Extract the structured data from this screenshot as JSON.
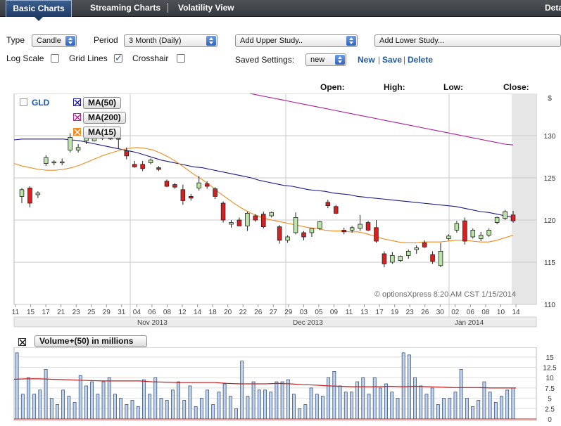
{
  "tabs": {
    "basic": "Basic Charts",
    "streaming": "Streaming Charts",
    "volatility": "Volatility View",
    "details": "Deta"
  },
  "controls": {
    "type_label": "Type",
    "type_value": "Candle",
    "period_label": "Period",
    "period_value": "3 Month (Daily)",
    "upper_study": "Add Upper Study..",
    "lower_study": "Add Lower Study...",
    "log_scale_label": "Log Scale",
    "log_scale_checked": false,
    "grid_lines_label": "Grid Lines",
    "grid_lines_checked": true,
    "crosshair_label": "Crosshair",
    "crosshair_checked": false,
    "saved_settings_label": "Saved Settings:",
    "saved_settings_value": "new",
    "new_link": "New",
    "save_link": "Save",
    "delete_link": "Delete",
    "pipe": "|"
  },
  "quote_header": {
    "open": "Open:",
    "high": "High:",
    "low": "Low:",
    "close": "Close:"
  },
  "legend": {
    "symbol": "GLD",
    "ma50": "MA(50)",
    "ma200": "MA(200)",
    "ma15": "MA(15)",
    "volume": "Volume+(50) in millions"
  },
  "watermark": "© optionsXpress 8:20 AM CST 1/15/2014",
  "colors": {
    "ma50": "#1a1a8c",
    "ma200": "#b0219a",
    "ma15": "#f08a1c",
    "up_candle": "#b9e6a5",
    "down_candle": "#d92020",
    "volume_bar": "#bdd3ee",
    "volume_ma": "#c51b1b"
  },
  "chart_data": [
    {
      "type": "candlestick",
      "unit_label": "$",
      "ylim": [
        110,
        135
      ],
      "yticks": [
        110,
        115,
        120,
        125,
        130
      ],
      "grid": true,
      "x_day_labels": [
        "11",
        "15",
        "17",
        "21",
        "23",
        "25",
        "29",
        "31",
        "04",
        "06",
        "08",
        "12",
        "14",
        "18",
        "20",
        "22",
        "26",
        "27",
        "29",
        "03",
        "05",
        "09",
        "11",
        "13",
        "17",
        "19",
        "23",
        "26",
        "30",
        "02",
        "06",
        "08",
        "10",
        "14"
      ],
      "month_labels": [
        "Nov 2013",
        "Dec 2013",
        "Jan 2014"
      ],
      "candles": [
        {
          "o": 122.8,
          "h": 123.8,
          "l": 122.0,
          "c": 123.6
        },
        {
          "o": 123.8,
          "h": 124.0,
          "l": 121.5,
          "c": 122.0
        },
        {
          "o": 123.0,
          "h": 123.4,
          "l": 122.6,
          "c": 123.2
        },
        {
          "o": 126.7,
          "h": 127.7,
          "l": 126.4,
          "c": 127.4
        },
        {
          "o": 126.8,
          "h": 127.1,
          "l": 126.5,
          "c": 126.9
        },
        {
          "o": 126.9,
          "h": 127.3,
          "l": 126.5,
          "c": 126.9
        },
        {
          "o": 128.3,
          "h": 130.3,
          "l": 128.0,
          "c": 129.8
        },
        {
          "o": 128.3,
          "h": 129.0,
          "l": 128.0,
          "c": 128.6
        },
        {
          "o": 129.4,
          "h": 130.5,
          "l": 129.0,
          "c": 129.8
        },
        {
          "o": 129.4,
          "h": 130.2,
          "l": 129.3,
          "c": 129.9
        },
        {
          "o": 129.8,
          "h": 130.0,
          "l": 129.5,
          "c": 129.7
        },
        {
          "o": 129.9,
          "h": 130.4,
          "l": 129.5,
          "c": 129.6
        },
        {
          "o": 129.7,
          "h": 130.0,
          "l": 128.5,
          "c": 129.6
        },
        {
          "o": 128.2,
          "h": 128.6,
          "l": 127.2,
          "c": 127.6
        },
        {
          "o": 126.6,
          "h": 127.0,
          "l": 126.2,
          "c": 126.3
        },
        {
          "o": 126.6,
          "h": 127.0,
          "l": 125.8,
          "c": 126.1
        },
        {
          "o": 126.8,
          "h": 127.3,
          "l": 126.6,
          "c": 127.1
        },
        {
          "o": 126.2,
          "h": 126.4,
          "l": 125.8,
          "c": 126.0
        },
        {
          "o": 124.6,
          "h": 124.8,
          "l": 123.9,
          "c": 124.0
        },
        {
          "o": 124.2,
          "h": 124.4,
          "l": 123.7,
          "c": 123.9
        },
        {
          "o": 123.6,
          "h": 124.2,
          "l": 121.8,
          "c": 122.3
        },
        {
          "o": 122.8,
          "h": 123.1,
          "l": 122.3,
          "c": 122.6
        },
        {
          "o": 123.8,
          "h": 125.2,
          "l": 123.5,
          "c": 124.4
        },
        {
          "o": 124.3,
          "h": 124.6,
          "l": 123.7,
          "c": 124.0
        },
        {
          "o": 123.7,
          "h": 123.9,
          "l": 122.5,
          "c": 122.8
        },
        {
          "o": 122.0,
          "h": 122.2,
          "l": 119.7,
          "c": 120.0
        },
        {
          "o": 119.5,
          "h": 120.0,
          "l": 119.1,
          "c": 119.7
        },
        {
          "o": 120.0,
          "h": 120.3,
          "l": 119.3,
          "c": 119.3
        },
        {
          "o": 119.3,
          "h": 121.0,
          "l": 118.7,
          "c": 120.8
        },
        {
          "o": 120.5,
          "h": 120.7,
          "l": 119.8,
          "c": 120.0
        },
        {
          "o": 120.7,
          "h": 121.0,
          "l": 119.0,
          "c": 119.2
        },
        {
          "o": 120.5,
          "h": 121.0,
          "l": 120.3,
          "c": 120.9
        },
        {
          "o": 119.2,
          "h": 119.4,
          "l": 117.2,
          "c": 117.6
        },
        {
          "o": 117.6,
          "h": 118.2,
          "l": 117.3,
          "c": 118.0
        },
        {
          "o": 118.5,
          "h": 120.9,
          "l": 118.3,
          "c": 120.3
        },
        {
          "o": 118.5,
          "h": 118.7,
          "l": 117.6,
          "c": 118.0
        },
        {
          "o": 118.5,
          "h": 119.0,
          "l": 118.0,
          "c": 119.0
        },
        {
          "o": 119.0,
          "h": 119.9,
          "l": 118.8,
          "c": 119.8
        },
        {
          "o": 122.1,
          "h": 122.4,
          "l": 121.4,
          "c": 121.7
        },
        {
          "o": 121.6,
          "h": 121.8,
          "l": 120.7,
          "c": 120.8
        },
        {
          "o": 118.8,
          "h": 119.1,
          "l": 118.3,
          "c": 118.6
        },
        {
          "o": 118.8,
          "h": 119.3,
          "l": 118.5,
          "c": 119.1
        },
        {
          "o": 119.0,
          "h": 120.6,
          "l": 118.7,
          "c": 119.5
        },
        {
          "o": 119.7,
          "h": 119.9,
          "l": 118.7,
          "c": 118.8
        },
        {
          "o": 119.1,
          "h": 120.0,
          "l": 117.3,
          "c": 117.5
        },
        {
          "o": 116.0,
          "h": 116.3,
          "l": 114.4,
          "c": 114.8
        },
        {
          "o": 115.0,
          "h": 116.2,
          "l": 114.8,
          "c": 115.8
        },
        {
          "o": 115.2,
          "h": 115.8,
          "l": 115.0,
          "c": 115.7
        },
        {
          "o": 115.8,
          "h": 116.5,
          "l": 115.4,
          "c": 116.3
        },
        {
          "o": 116.5,
          "h": 117.0,
          "l": 116.0,
          "c": 116.7
        },
        {
          "o": 117.3,
          "h": 117.6,
          "l": 116.7,
          "c": 116.8
        },
        {
          "o": 115.9,
          "h": 116.3,
          "l": 114.8,
          "c": 115.1
        },
        {
          "o": 114.6,
          "h": 117.3,
          "l": 114.4,
          "c": 116.3
        },
        {
          "o": 117.8,
          "h": 118.3,
          "l": 117.6,
          "c": 118.1
        },
        {
          "o": 118.8,
          "h": 119.9,
          "l": 118.5,
          "c": 119.6
        },
        {
          "o": 119.9,
          "h": 120.3,
          "l": 117.1,
          "c": 117.5
        },
        {
          "o": 118.0,
          "h": 119.0,
          "l": 117.8,
          "c": 118.8
        },
        {
          "o": 117.8,
          "h": 118.6,
          "l": 117.5,
          "c": 118.2
        },
        {
          "o": 118.2,
          "h": 119.0,
          "l": 118.0,
          "c": 118.8
        },
        {
          "o": 119.7,
          "h": 120.4,
          "l": 119.5,
          "c": 120.3
        },
        {
          "o": 120.2,
          "h": 121.2,
          "l": 120.0,
          "c": 121.0
        },
        {
          "o": 120.6,
          "h": 121.1,
          "l": 119.7,
          "c": 119.9
        }
      ],
      "ma50": [
        129.5,
        129.6,
        129.6,
        129.6,
        129.6,
        129.6,
        129.6,
        129.5,
        129.4,
        129.2,
        129.0,
        128.8,
        128.6,
        128.4,
        128.2,
        128.0,
        127.7,
        127.4,
        127.1,
        126.9,
        126.7,
        126.5,
        126.3,
        126.2,
        126.0,
        125.8,
        125.6,
        125.4,
        125.2,
        125.0,
        124.7,
        124.5,
        124.3,
        124.1,
        124.0,
        123.8,
        123.6,
        123.5,
        123.4,
        123.2,
        123.1,
        123.0,
        122.8,
        122.7,
        122.6,
        122.5,
        122.4,
        122.3,
        122.2,
        122.1,
        122.0,
        121.9,
        121.8,
        121.7,
        121.6,
        121.4,
        121.2,
        121.0,
        120.9,
        120.7,
        120.5,
        120.3
      ],
      "ma200": [
        135.0,
        134.8,
        134.6,
        134.4,
        134.2,
        134.0,
        133.8,
        133.6,
        133.4,
        133.2,
        133.0,
        132.8,
        132.6,
        132.4,
        132.2,
        132.0,
        131.8,
        131.6,
        131.4,
        131.2,
        131.0,
        130.8,
        130.6,
        130.4,
        130.2,
        130.0,
        129.8,
        129.6,
        129.4,
        129.2,
        129.0,
        128.9
      ],
      "ma15": [
        126.7,
        126.4,
        126.2,
        126.0,
        125.9,
        125.9,
        126.0,
        126.2,
        126.5,
        126.9,
        127.3,
        127.7,
        128.0,
        128.3,
        128.5,
        128.6,
        128.5,
        128.3,
        127.9,
        127.4,
        126.8,
        126.1,
        125.4,
        124.8,
        124.1,
        123.3,
        122.6,
        121.9,
        121.3,
        120.8,
        120.4,
        120.1,
        119.9,
        119.7,
        119.5,
        119.3,
        119.1,
        119.0,
        118.8,
        118.7,
        118.7,
        118.6,
        118.6,
        118.4,
        118.1,
        117.8,
        117.6,
        117.4,
        117.3,
        117.3,
        117.4,
        117.4,
        117.4,
        117.5,
        117.6,
        117.6,
        117.5,
        117.4,
        117.4,
        117.6,
        117.9,
        118.2
      ]
    },
    {
      "type": "bar",
      "title": "Volume+(50) in millions",
      "ylim": [
        0,
        17
      ],
      "yticks": [
        0,
        2.5,
        5,
        7.5,
        10,
        12.5,
        15
      ],
      "values": [
        16.0,
        6.0,
        10.0,
        6.0,
        7.0,
        12.0,
        5.0,
        3.5,
        7.0,
        5.5,
        4.0,
        10.5,
        8.0,
        9.0,
        6.0,
        9.0,
        10.0,
        6.0,
        5.0,
        3.5,
        4.5,
        3.0,
        9.5,
        6.0,
        10.0,
        5.0,
        4.5,
        7.0,
        9.0,
        4.5,
        8.0,
        3.0,
        5.0,
        7.0,
        3.5,
        6.5,
        8.5,
        5.5,
        2.5,
        14.0,
        5.5,
        9.0,
        7.0,
        7.0,
        6.5,
        9.0,
        9.0,
        9.5,
        6.0,
        2.5,
        3.5,
        7.5,
        6.0,
        5.5,
        10.0,
        11.5,
        8.0,
        6.5,
        6.5,
        9.0,
        10.0,
        6.0,
        10.0,
        7.5,
        8.5,
        6.5,
        5.0,
        16.0,
        15.5,
        10.0,
        8.0,
        6.0,
        7.5,
        3.5,
        5.0,
        5.0,
        6.5,
        12.0,
        5.0,
        3.0,
        4.5,
        9.0,
        6.5,
        4.0,
        5.5,
        7.0,
        7.5
      ],
      "ma_values": [
        9.6,
        9.7,
        9.7,
        9.6,
        9.5,
        9.4,
        9.3,
        9.2,
        9.2,
        9.2,
        9.2,
        9.0,
        8.9,
        8.8,
        8.8,
        8.8,
        8.8,
        8.6,
        8.5,
        8.5,
        8.5,
        8.6,
        8.5,
        8.3,
        8.2,
        8.0,
        7.9,
        7.8,
        7.8,
        7.8,
        7.9,
        7.8,
        7.9,
        7.8,
        7.7,
        7.6,
        7.6,
        7.6,
        7.5,
        7.5,
        7.5
      ]
    }
  ]
}
